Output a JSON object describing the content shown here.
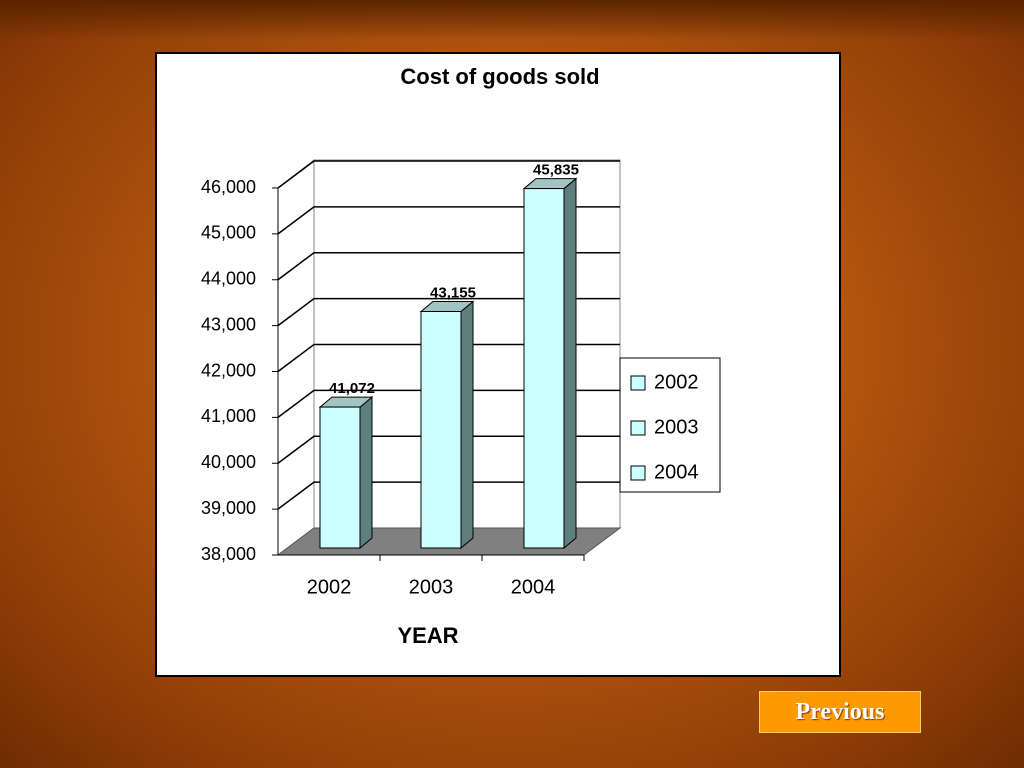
{
  "chart_data": {
    "type": "bar3d",
    "title": "Cost of goods sold",
    "x_label": "YEAR",
    "categories": [
      "2002",
      "2003",
      "2004"
    ],
    "values": [
      41072,
      43155,
      45835
    ],
    "value_labels": [
      "41,072",
      "43,155",
      "45,835"
    ],
    "color": "#ccffff",
    "ylim": [
      38000,
      46000
    ],
    "yticks": [
      {
        "value": 38000,
        "label": "38,000"
      },
      {
        "value": 39000,
        "label": "39,000"
      },
      {
        "value": 40000,
        "label": "40,000"
      },
      {
        "value": 41000,
        "label": "41,000"
      },
      {
        "value": 42000,
        "label": "42,000"
      },
      {
        "value": 43000,
        "label": "43,000"
      },
      {
        "value": 44000,
        "label": "44,000"
      },
      {
        "value": 45000,
        "label": "45,000"
      },
      {
        "value": 46000,
        "label": "46,000"
      }
    ],
    "grid": true,
    "legend": "right"
  },
  "navigation": {
    "previous": "Previous"
  }
}
